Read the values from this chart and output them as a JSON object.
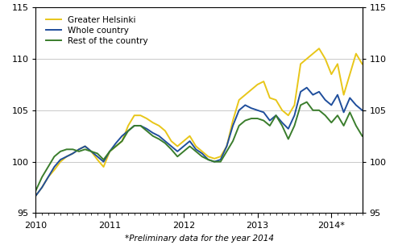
{
  "title": "*Preliminary data for the year 2014",
  "ylim": [
    95,
    115
  ],
  "yticks": [
    95,
    100,
    105,
    110,
    115
  ],
  "colors": {
    "greater_helsinki": "#E8C619",
    "whole_country": "#1F4E9C",
    "rest_of_country": "#3A7D2C"
  },
  "legend_labels": [
    "Greater Helsinki",
    "Whole country",
    "Rest of the country"
  ],
  "greater_helsinki": [
    96.7,
    97.5,
    98.5,
    99.2,
    100.0,
    100.5,
    100.8,
    101.2,
    101.5,
    101.0,
    100.2,
    99.5,
    101.0,
    101.5,
    102.0,
    103.5,
    104.5,
    104.5,
    104.2,
    103.8,
    103.5,
    103.0,
    102.0,
    101.5,
    102.0,
    102.5,
    101.5,
    101.0,
    100.5,
    100.3,
    100.5,
    101.5,
    104.0,
    106.0,
    106.5,
    107.0,
    107.5,
    107.8,
    106.2,
    106.0,
    105.0,
    104.5,
    105.5,
    109.5,
    110.0,
    110.5,
    111.0,
    110.0,
    108.5,
    109.5,
    106.5,
    108.5,
    110.5,
    109.5
  ],
  "whole_country": [
    96.7,
    97.5,
    98.5,
    99.5,
    100.2,
    100.5,
    100.8,
    101.2,
    101.5,
    101.0,
    100.5,
    100.0,
    101.0,
    101.8,
    102.5,
    103.0,
    103.5,
    103.5,
    103.2,
    102.8,
    102.5,
    102.0,
    101.5,
    101.0,
    101.5,
    102.0,
    101.2,
    100.8,
    100.2,
    100.0,
    100.2,
    101.5,
    103.5,
    105.0,
    105.5,
    105.2,
    105.0,
    104.8,
    104.0,
    104.5,
    103.8,
    103.2,
    104.5,
    106.8,
    107.2,
    106.5,
    106.8,
    106.0,
    105.5,
    106.5,
    104.8,
    106.2,
    105.5,
    105.0
  ],
  "rest_of_country": [
    97.2,
    98.5,
    99.5,
    100.5,
    101.0,
    101.2,
    101.2,
    101.0,
    101.2,
    101.0,
    100.8,
    100.2,
    101.0,
    101.5,
    102.0,
    103.0,
    103.5,
    103.5,
    103.0,
    102.5,
    102.2,
    101.8,
    101.2,
    100.5,
    101.0,
    101.5,
    101.0,
    100.5,
    100.2,
    100.0,
    100.0,
    101.0,
    102.0,
    103.5,
    104.0,
    104.2,
    104.2,
    104.0,
    103.5,
    104.5,
    103.5,
    102.2,
    103.5,
    105.5,
    105.8,
    105.0,
    105.0,
    104.5,
    103.8,
    104.5,
    103.5,
    104.8,
    103.5,
    102.5
  ],
  "n_months": 54,
  "year_tick_positions": [
    0,
    12,
    24,
    36,
    48
  ],
  "year_labels": [
    "2010",
    "2011",
    "2012",
    "2013",
    "2014*"
  ]
}
